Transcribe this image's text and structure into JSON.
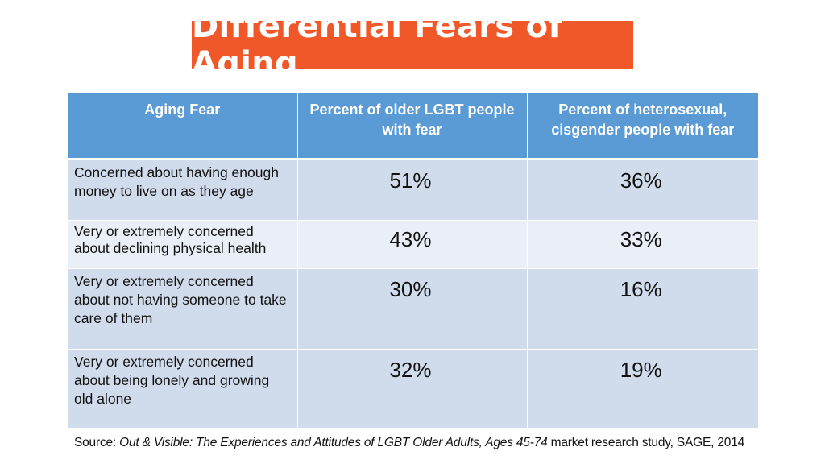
{
  "title": "Differential Fears of Aging",
  "table": {
    "headers": [
      "Aging Fear",
      "Percent of older LGBT people with fear",
      "Percent of heterosexual, cisgender people with fear"
    ],
    "rows": [
      {
        "fear": "Concerned about having enough money to live on as they age",
        "lgbt": "51%",
        "hetero": "36%"
      },
      {
        "fear": "Very or extremely concerned about declining physical health",
        "lgbt": "43%",
        "hetero": "33%"
      },
      {
        "fear": "Very or extremely concerned about not having someone to take care of them",
        "lgbt": "30%",
        "hetero": "16%"
      },
      {
        "fear": "Very or extremely concerned about being lonely and growing old alone",
        "lgbt": "32%",
        "hetero": "19%"
      }
    ]
  },
  "source": {
    "prefix": "Source: ",
    "work": "Out & Visible: The Experiences and Attitudes of LGBT Older Adults, Ages 45-74",
    "suffix": " market research study, SAGE, 2014"
  },
  "colors": {
    "title_bg": "#f0582a",
    "header_bg": "#5b9bd5",
    "row_dark": "#d0dcec",
    "row_light": "#e9eef7"
  }
}
